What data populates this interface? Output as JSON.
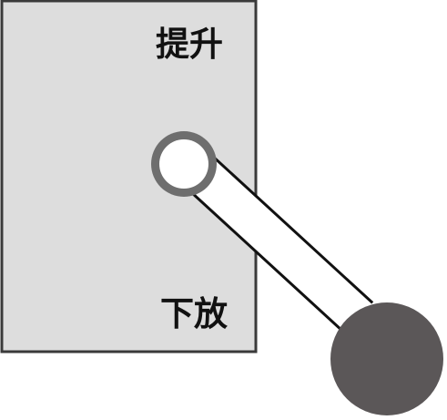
{
  "panel": {
    "label_top": "提升",
    "label_bottom": "下放",
    "fill_color": "#dddddd",
    "border_color": "#3a3a3a"
  },
  "lever": {
    "pivot_ring_color": "#6e6e6e",
    "pivot_center_color": "#ffffff",
    "arm_color": "#ffffff",
    "arm_outline_color": "#111111",
    "knob_color": "#5b5758"
  }
}
